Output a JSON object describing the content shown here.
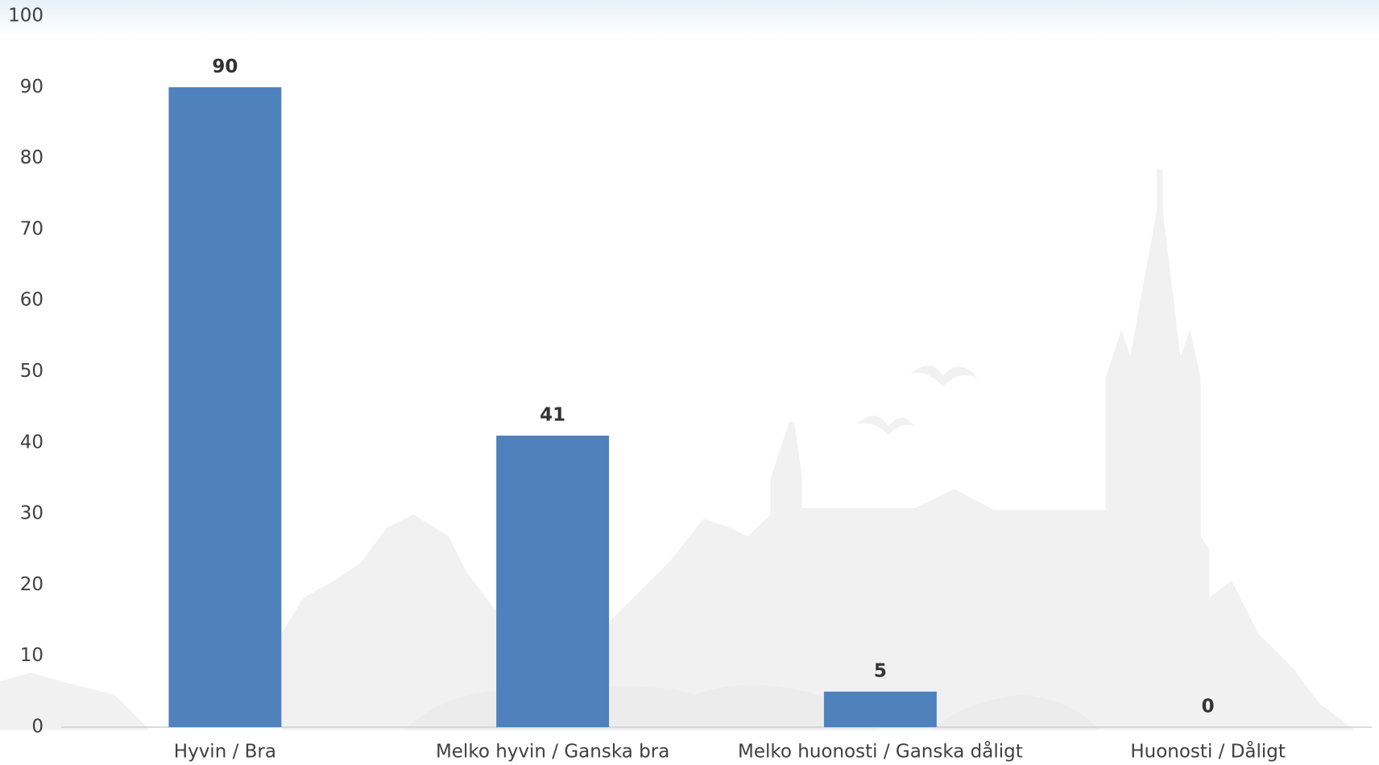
{
  "chart_data": {
    "type": "bar",
    "categories": [
      "Hyvin / Bra",
      "Melko hyvin / Ganska bra",
      "Melko huonosti / Ganska dåligt",
      "Huonosti / Dåligt"
    ],
    "values": [
      90,
      41,
      5,
      0
    ],
    "color": "#4f81bd",
    "ylim": [
      0,
      100
    ],
    "yticks": [
      0,
      10,
      20,
      30,
      40,
      50,
      60,
      70,
      80,
      90,
      100
    ],
    "grid": false
  }
}
